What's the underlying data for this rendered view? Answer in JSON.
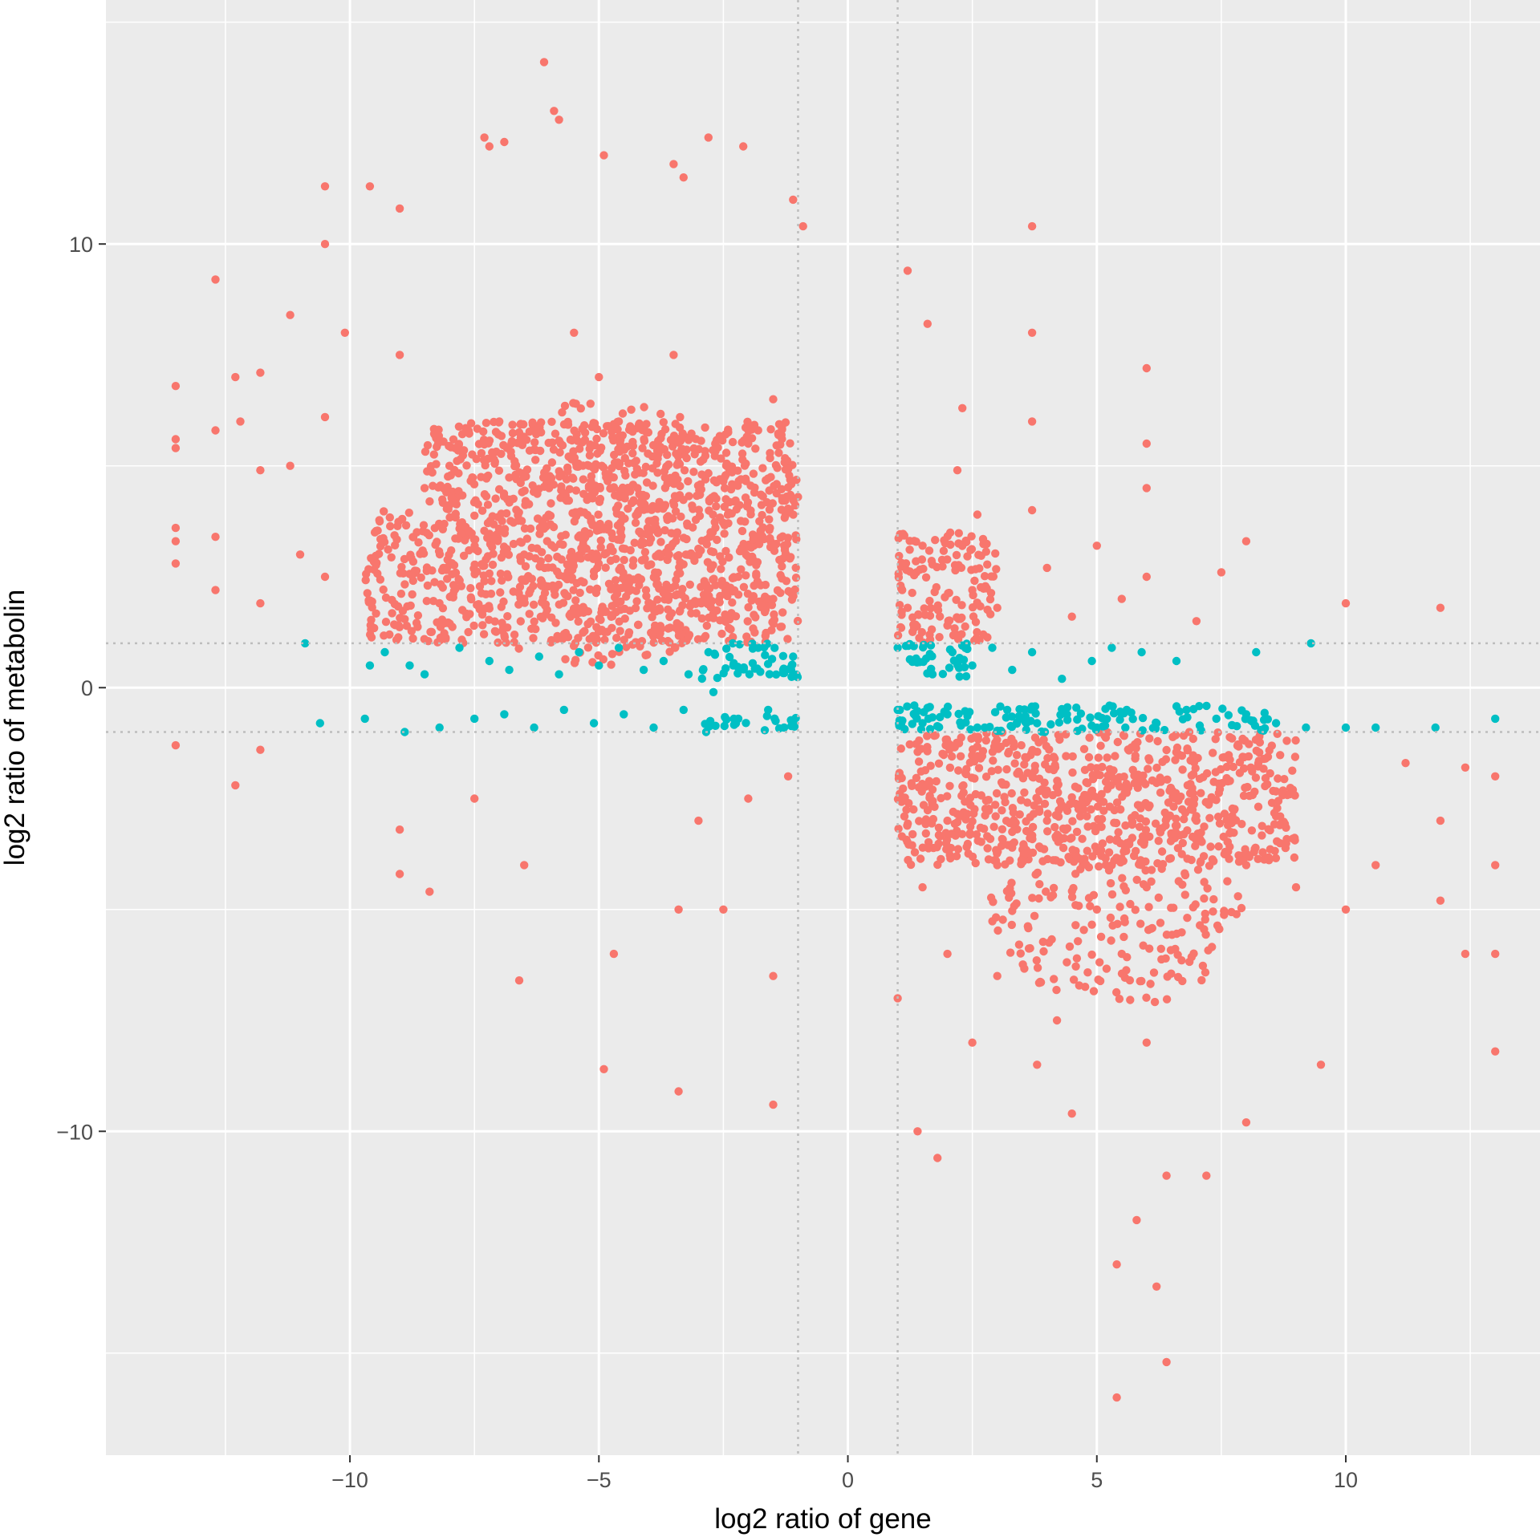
{
  "chart_data": {
    "type": "scatter",
    "title": "",
    "xlabel": "log2 ratio of gene",
    "ylabel": "log2 ratio of metabolin",
    "xlim": [
      -14.9,
      13.9
    ],
    "ylim": [
      -17.3,
      15.5
    ],
    "x_ticks": [
      -10,
      -5,
      0,
      5,
      10
    ],
    "x_tick_labels": [
      "−10",
      "−5",
      "0",
      "5",
      "10"
    ],
    "y_ticks": [
      -10,
      0,
      10
    ],
    "y_tick_labels": [
      "−10",
      "0",
      "10"
    ],
    "grid": true,
    "panel_background": "#ebebeb",
    "grid_color": "#ffffff",
    "reference_lines": {
      "x": [
        -1,
        1
      ],
      "y": [
        -1,
        1
      ],
      "style": "dotted",
      "color": "#bdbdbd"
    },
    "legend": "none",
    "colors": {
      "red": "#f8766d",
      "teal": "#00bfc4"
    },
    "series": [
      {
        "color": "red",
        "points": [
          [
            -13.5,
            6.8
          ],
          [
            -13.5,
            5.6
          ],
          [
            -13.5,
            5.4
          ],
          [
            -13.5,
            3.6
          ],
          [
            -13.5,
            3.3
          ],
          [
            -13.5,
            2.8
          ],
          [
            -13.5,
            -1.3
          ],
          [
            -12.7,
            9.2
          ],
          [
            -12.7,
            5.8
          ],
          [
            -12.7,
            3.4
          ],
          [
            -12.7,
            2.2
          ],
          [
            -12.3,
            7.0
          ],
          [
            -12.3,
            -2.2
          ],
          [
            -12.2,
            6.0
          ],
          [
            -11.8,
            7.1
          ],
          [
            -11.8,
            4.9
          ],
          [
            -11.8,
            1.9
          ],
          [
            -11.8,
            -1.4
          ],
          [
            -11.2,
            8.4
          ],
          [
            -11.2,
            5.0
          ],
          [
            -11.0,
            3.0
          ],
          [
            -10.5,
            11.3
          ],
          [
            -10.5,
            10.0
          ],
          [
            -10.5,
            6.1
          ],
          [
            -10.5,
            2.5
          ],
          [
            -10.1,
            8.0
          ],
          [
            -9.6,
            11.3
          ],
          [
            -9.0,
            10.8
          ],
          [
            -9.0,
            -4.2
          ],
          [
            -8.4,
            -4.6
          ],
          [
            -7.3,
            12.4
          ],
          [
            -7.2,
            12.2
          ],
          [
            -6.9,
            12.3
          ],
          [
            -6.6,
            -6.6
          ],
          [
            -6.1,
            14.1
          ],
          [
            -5.9,
            13.0
          ],
          [
            -5.8,
            12.8
          ],
          [
            -4.9,
            12.0
          ],
          [
            -4.9,
            -8.6
          ],
          [
            -3.5,
            11.8
          ],
          [
            -3.4,
            -9.1
          ],
          [
            -3.3,
            11.5
          ],
          [
            -2.8,
            12.4
          ],
          [
            -2.1,
            12.2
          ],
          [
            -1.5,
            -9.4
          ],
          [
            -1.1,
            11.0
          ],
          [
            -0.9,
            10.4
          ],
          [
            -5.5,
            8.0
          ],
          [
            -5.0,
            7.0
          ],
          [
            -4.6,
            6.0
          ],
          [
            -5.2,
            5.0
          ],
          [
            -4.3,
            4.2
          ],
          [
            -6.0,
            4.5
          ],
          [
            -3.8,
            3.5
          ],
          [
            -3.0,
            3.0
          ],
          [
            -2.2,
            2.5
          ],
          [
            -1.5,
            2.0
          ],
          [
            -1.2,
            4.0
          ],
          [
            -8.0,
            5.0
          ],
          [
            -7.0,
            6.0
          ],
          [
            -6.5,
            3.0
          ],
          [
            -9.5,
            3.5
          ],
          [
            -9.0,
            7.5
          ],
          [
            -8.5,
            4.5
          ],
          [
            -6.5,
            2.0
          ],
          [
            -3.5,
            7.5
          ],
          [
            -2.0,
            5.5
          ],
          [
            -1.5,
            6.5
          ],
          [
            -1.2,
            -2.0
          ],
          [
            -2.0,
            -2.5
          ],
          [
            -3.0,
            -3.0
          ],
          [
            -3.4,
            -5.0
          ],
          [
            -4.7,
            -6.0
          ],
          [
            -6.5,
            -4.0
          ],
          [
            -1.5,
            -6.5
          ],
          [
            -2.5,
            -5.0
          ],
          [
            -7.5,
            -2.5
          ],
          [
            -9.0,
            -3.2
          ],
          [
            2.2,
            4.9
          ],
          [
            2.3,
            6.3
          ],
          [
            1.6,
            8.2
          ],
          [
            1.2,
            9.4
          ],
          [
            3.7,
            10.4
          ],
          [
            3.7,
            8.0
          ],
          [
            3.7,
            6.0
          ],
          [
            3.7,
            4.0
          ],
          [
            6.0,
            7.2
          ],
          [
            6.0,
            5.5
          ],
          [
            6.0,
            4.5
          ],
          [
            6.0,
            2.5
          ],
          [
            5.0,
            3.2
          ],
          [
            8.0,
            3.3
          ],
          [
            10.0,
            1.9
          ],
          [
            11.9,
            1.8
          ],
          [
            7.5,
            2.6
          ],
          [
            1.5,
            3.2
          ],
          [
            2.5,
            2.2
          ],
          [
            3.0,
            1.8
          ],
          [
            4.0,
            2.7
          ],
          [
            4.5,
            1.6
          ],
          [
            5.5,
            2.0
          ],
          [
            7.0,
            1.5
          ],
          [
            2.0,
            1.4
          ],
          [
            2.6,
            3.9
          ],
          [
            1.2,
            1.8
          ],
          [
            2.0,
            -3.0
          ],
          [
            3.0,
            -4.0
          ],
          [
            4.0,
            -3.0
          ],
          [
            5.0,
            -5.0
          ],
          [
            5.5,
            -6.0
          ],
          [
            6.0,
            -4.5
          ],
          [
            7.0,
            -3.0
          ],
          [
            8.0,
            -4.0
          ],
          [
            9.0,
            -4.5
          ],
          [
            10.0,
            -5.0
          ],
          [
            10.6,
            -4.0
          ],
          [
            11.2,
            -1.7
          ],
          [
            11.9,
            -3.0
          ],
          [
            11.9,
            -4.8
          ],
          [
            12.4,
            -6.0
          ],
          [
            12.4,
            -1.8
          ],
          [
            13.0,
            -2.0
          ],
          [
            13.0,
            -4.0
          ],
          [
            13.0,
            -6.0
          ],
          [
            13.0,
            -8.2
          ],
          [
            5.4,
            -16.0
          ],
          [
            6.4,
            -15.2
          ],
          [
            5.4,
            -13.0
          ],
          [
            6.2,
            -13.5
          ],
          [
            5.8,
            -12.0
          ],
          [
            6.4,
            -11.0
          ],
          [
            7.2,
            -11.0
          ],
          [
            4.5,
            -9.6
          ],
          [
            3.8,
            -8.5
          ],
          [
            2.5,
            -8.0
          ],
          [
            1.4,
            -10.0
          ],
          [
            1.8,
            -10.6
          ],
          [
            1.0,
            -7.0
          ],
          [
            8.0,
            -9.8
          ],
          [
            9.5,
            -8.5
          ],
          [
            4.2,
            -7.5
          ],
          [
            6.0,
            -8.0
          ],
          [
            3.0,
            -6.5
          ],
          [
            2.0,
            -6.0
          ],
          [
            1.5,
            -4.5
          ]
        ]
      },
      {
        "color": "teal",
        "points": [
          [
            -10.9,
            1.0
          ],
          [
            -9.6,
            0.5
          ],
          [
            -9.3,
            0.8
          ],
          [
            -8.8,
            0.5
          ],
          [
            -8.5,
            0.3
          ],
          [
            -7.8,
            0.9
          ],
          [
            -7.2,
            0.6
          ],
          [
            -6.8,
            0.4
          ],
          [
            -6.2,
            0.7
          ],
          [
            -5.8,
            0.3
          ],
          [
            -5.4,
            0.8
          ],
          [
            -5.0,
            0.5
          ],
          [
            -4.6,
            0.9
          ],
          [
            -4.1,
            0.4
          ],
          [
            -3.7,
            0.6
          ],
          [
            -3.2,
            0.3
          ],
          [
            -2.8,
            0.8
          ],
          [
            -2.3,
            0.5
          ],
          [
            -1.8,
            0.9
          ],
          [
            -1.3,
            0.4
          ],
          [
            -1.1,
            0.7
          ],
          [
            -10.6,
            -0.8
          ],
          [
            -9.7,
            -0.7
          ],
          [
            -8.9,
            -1.0
          ],
          [
            -8.2,
            -0.9
          ],
          [
            -7.5,
            -0.7
          ],
          [
            -6.9,
            -0.6
          ],
          [
            -6.3,
            -0.9
          ],
          [
            -5.7,
            -0.5
          ],
          [
            -5.1,
            -0.8
          ],
          [
            -4.5,
            -0.6
          ],
          [
            -3.9,
            -0.9
          ],
          [
            -3.3,
            -0.5
          ],
          [
            -2.7,
            -0.1
          ],
          [
            -2.2,
            -0.7
          ],
          [
            -1.6,
            -0.5
          ],
          [
            -1.1,
            -0.8
          ],
          [
            1.0,
            0.9
          ],
          [
            1.3,
            0.6
          ],
          [
            1.7,
            0.3
          ],
          [
            2.1,
            0.8
          ],
          [
            2.5,
            0.5
          ],
          [
            2.9,
            0.9
          ],
          [
            3.3,
            0.4
          ],
          [
            3.7,
            0.8
          ],
          [
            4.3,
            0.2
          ],
          [
            4.9,
            0.6
          ],
          [
            5.3,
            0.9
          ],
          [
            5.9,
            0.8
          ],
          [
            6.6,
            0.6
          ],
          [
            8.2,
            0.8
          ],
          [
            9.3,
            1.0
          ],
          [
            1.0,
            -0.5
          ],
          [
            1.5,
            -0.8
          ],
          [
            2.0,
            -0.6
          ],
          [
            2.6,
            -0.9
          ],
          [
            3.2,
            -0.5
          ],
          [
            3.8,
            -0.8
          ],
          [
            4.4,
            -0.6
          ],
          [
            5.0,
            -0.9
          ],
          [
            5.6,
            -0.5
          ],
          [
            6.2,
            -0.8
          ],
          [
            6.8,
            -0.5
          ],
          [
            7.4,
            -0.7
          ],
          [
            8.0,
            -0.6
          ],
          [
            8.6,
            -0.8
          ],
          [
            9.2,
            -0.9
          ],
          [
            10.0,
            -0.9
          ],
          [
            10.6,
            -0.9
          ],
          [
            11.8,
            -0.9
          ],
          [
            13.0,
            -0.7
          ]
        ]
      }
    ],
    "dense_regions": [
      {
        "color": "red",
        "shape": "band",
        "x": [
          -9.7,
          -1.0
        ],
        "y_range": [
          1.0,
          4.0
        ]
      },
      {
        "color": "red",
        "shape": "cloud",
        "center": [
          -5.0,
          3.5
        ],
        "rx": 3.3,
        "ry": 3.0
      },
      {
        "color": "red",
        "shape": "band",
        "x": [
          -8.5,
          -1.0
        ],
        "y_range": [
          4.0,
          6.0
        ]
      },
      {
        "color": "red",
        "shape": "band",
        "x": [
          1.0,
          9.0
        ],
        "y_range": [
          -4.0,
          -1.0
        ]
      },
      {
        "color": "red",
        "shape": "cloud",
        "center": [
          5.4,
          -4.5
        ],
        "rx": 2.6,
        "ry": 2.8
      },
      {
        "color": "red",
        "shape": "band",
        "x": [
          1.0,
          3.0
        ],
        "y_range": [
          1.0,
          3.5
        ]
      },
      {
        "color": "teal",
        "shape": "band",
        "x": [
          -3.0,
          -1.0
        ],
        "y_range": [
          0.2,
          1.0
        ]
      },
      {
        "color": "teal",
        "shape": "band",
        "x": [
          -3.0,
          -1.0
        ],
        "y_range": [
          -1.0,
          -0.6
        ]
      },
      {
        "color": "teal",
        "shape": "band",
        "x": [
          1.0,
          8.5
        ],
        "y_range": [
          -1.0,
          -0.4
        ]
      },
      {
        "color": "teal",
        "shape": "band",
        "x": [
          1.0,
          2.5
        ],
        "y_range": [
          0.2,
          1.0
        ]
      }
    ]
  }
}
